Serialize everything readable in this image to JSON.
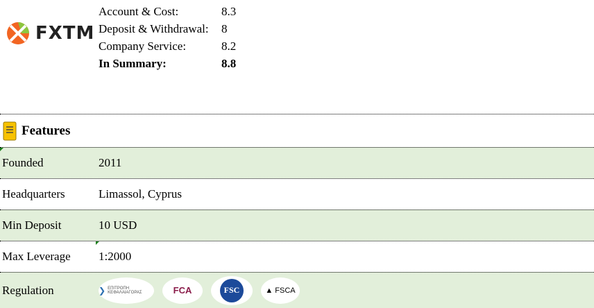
{
  "logo": {
    "text": "FXTM",
    "colors": {
      "orange": "#f26522",
      "green": "#8dc63f"
    }
  },
  "scores": [
    {
      "label": "Account & Cost:",
      "value": "8.3"
    },
    {
      "label": "Deposit & Withdrawal:",
      "value": "8"
    },
    {
      "label": "Company Service:",
      "value": "8.2"
    },
    {
      "label": "In Summary:",
      "value": "8.8",
      "bold": true
    }
  ],
  "features": {
    "title": "Features",
    "icon": "notebook-icon",
    "rows": [
      {
        "key": "Founded",
        "value": "2011"
      },
      {
        "key": "Headquarters",
        "value": "Limassol, Cyprus"
      },
      {
        "key": "Min Deposit",
        "value": "10 USD"
      },
      {
        "key": "Max Leverage",
        "value": "1:2000"
      },
      {
        "key": "Regulation",
        "logos": [
          "CySEC",
          "FCA",
          "FSC",
          "FSCA"
        ]
      }
    ]
  },
  "colors": {
    "row_highlight": "#e2efda"
  }
}
